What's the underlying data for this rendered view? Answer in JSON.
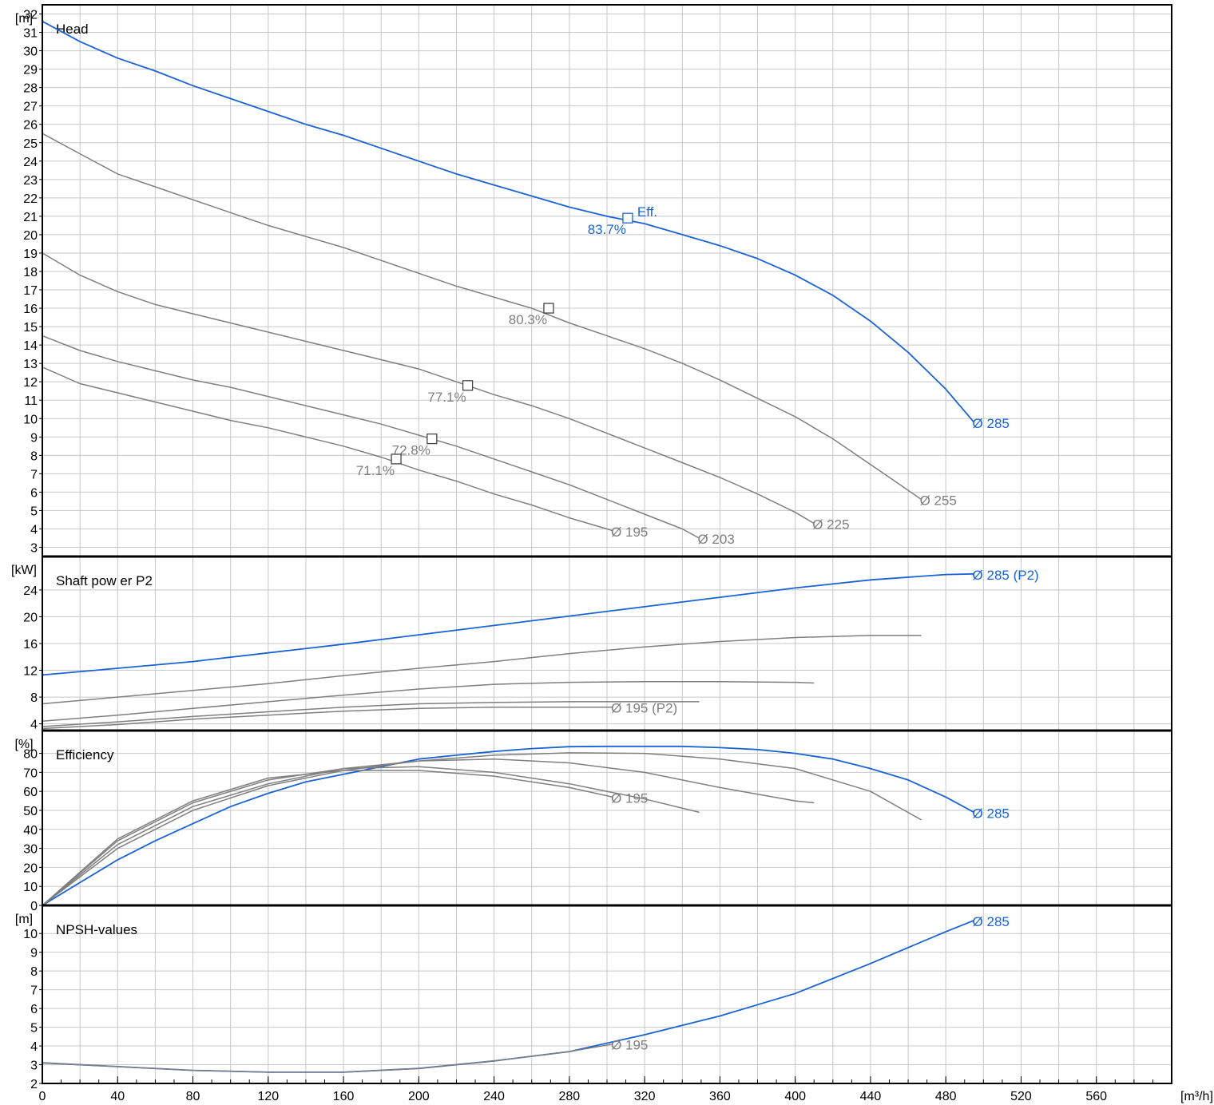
{
  "colors": {
    "main": "#1a63d6",
    "other": "#7f7f7f",
    "grid": "#c8c8c8",
    "frame": "#000000"
  },
  "x_axis": {
    "unit": "[m³/h]",
    "min": 0,
    "max": 600,
    "ticks": [
      0,
      40,
      80,
      120,
      160,
      200,
      240,
      280,
      320,
      360,
      400,
      440,
      480,
      520,
      560
    ]
  },
  "chart_data": [
    {
      "type": "line",
      "title": "Head",
      "ylabel": "[m]",
      "ylim": [
        2.5,
        32.5
      ],
      "yticks": [
        3,
        4,
        5,
        6,
        7,
        8,
        9,
        10,
        11,
        12,
        13,
        14,
        15,
        16,
        17,
        18,
        19,
        20,
        21,
        22,
        23,
        24,
        25,
        26,
        27,
        28,
        29,
        30,
        31,
        32
      ],
      "grid": true,
      "series": [
        {
          "name": "Ø 285",
          "main": true,
          "x": [
            0,
            20,
            40,
            60,
            80,
            100,
            120,
            140,
            160,
            180,
            200,
            220,
            240,
            260,
            280,
            300,
            320,
            340,
            360,
            380,
            400,
            420,
            440,
            460,
            480,
            495
          ],
          "y": [
            31.6,
            30.5,
            29.6,
            28.9,
            28.1,
            27.4,
            26.7,
            26.0,
            25.4,
            24.7,
            24.0,
            23.3,
            22.7,
            22.1,
            21.5,
            21.0,
            20.6,
            20.0,
            19.4,
            18.7,
            17.8,
            16.7,
            15.3,
            13.6,
            11.6,
            9.8
          ]
        },
        {
          "name": "Ø 255",
          "x": [
            0,
            20,
            40,
            60,
            80,
            100,
            120,
            140,
            160,
            180,
            200,
            220,
            240,
            260,
            280,
            300,
            320,
            340,
            360,
            380,
            400,
            420,
            440,
            460,
            467
          ],
          "y": [
            25.5,
            24.4,
            23.3,
            22.6,
            21.9,
            21.2,
            20.5,
            19.9,
            19.3,
            18.6,
            17.9,
            17.2,
            16.6,
            16.0,
            15.2,
            14.5,
            13.8,
            13.0,
            12.1,
            11.1,
            10.1,
            8.9,
            7.5,
            6.1,
            5.6
          ]
        },
        {
          "name": "Ø 225",
          "x": [
            0,
            20,
            40,
            60,
            80,
            100,
            120,
            140,
            160,
            180,
            200,
            220,
            240,
            260,
            280,
            300,
            320,
            340,
            360,
            380,
            400,
            410
          ],
          "y": [
            19.0,
            17.8,
            16.9,
            16.2,
            15.7,
            15.2,
            14.7,
            14.2,
            13.7,
            13.2,
            12.7,
            12.0,
            11.3,
            10.7,
            10.0,
            9.2,
            8.4,
            7.6,
            6.8,
            5.9,
            4.9,
            4.3
          ]
        },
        {
          "name": "Ø 203",
          "x": [
            0,
            20,
            40,
            60,
            80,
            100,
            120,
            140,
            160,
            180,
            200,
            220,
            240,
            260,
            280,
            300,
            320,
            340,
            349
          ],
          "y": [
            14.5,
            13.7,
            13.1,
            12.6,
            12.1,
            11.7,
            11.2,
            10.7,
            10.2,
            9.7,
            9.1,
            8.5,
            7.8,
            7.1,
            6.4,
            5.6,
            4.8,
            4.0,
            3.5
          ]
        },
        {
          "name": "Ø 195",
          "x": [
            0,
            20,
            40,
            60,
            80,
            100,
            120,
            140,
            160,
            180,
            200,
            220,
            240,
            260,
            280,
            300,
            303
          ],
          "y": [
            12.8,
            11.9,
            11.4,
            10.9,
            10.4,
            9.9,
            9.5,
            9.0,
            8.5,
            7.9,
            7.2,
            6.6,
            5.9,
            5.3,
            4.6,
            4.0,
            3.9
          ]
        }
      ],
      "annotations": [
        {
          "x": 311,
          "y": 20.9,
          "text": "Eff.",
          "main": true
        },
        {
          "x": 311,
          "y": 20.9,
          "text": "83.7%",
          "main": true
        },
        {
          "x": 269,
          "y": 16.0,
          "text": "80.3%"
        },
        {
          "x": 226,
          "y": 11.8,
          "text": "77.1%"
        },
        {
          "x": 207,
          "y": 8.9,
          "text": "72.8%"
        },
        {
          "x": 188,
          "y": 7.8,
          "text": "71.1%"
        }
      ]
    },
    {
      "type": "line",
      "title": "Shaft pow er P2",
      "ylabel": "[kW]",
      "ylim": [
        3,
        29
      ],
      "yticks": [
        4,
        8,
        12,
        16,
        20,
        24
      ],
      "grid": true,
      "series": [
        {
          "name": "Ø 285 (P2)",
          "main": true,
          "x": [
            0,
            40,
            80,
            120,
            160,
            200,
            240,
            280,
            320,
            360,
            400,
            440,
            480,
            495
          ],
          "y": [
            11.3,
            12.3,
            13.3,
            14.6,
            15.9,
            17.3,
            18.7,
            20.1,
            21.5,
            22.9,
            24.3,
            25.5,
            26.3,
            26.4
          ]
        },
        {
          "name": "",
          "x": [
            0,
            40,
            80,
            120,
            160,
            200,
            240,
            280,
            320,
            360,
            400,
            440,
            467
          ],
          "y": [
            7.0,
            8.0,
            9.0,
            10.0,
            11.2,
            12.3,
            13.3,
            14.5,
            15.5,
            16.3,
            16.9,
            17.2,
            17.2
          ]
        },
        {
          "name": "",
          "x": [
            0,
            40,
            80,
            120,
            160,
            200,
            240,
            280,
            320,
            360,
            400,
            410
          ],
          "y": [
            4.4,
            5.3,
            6.3,
            7.3,
            8.3,
            9.2,
            9.9,
            10.2,
            10.3,
            10.3,
            10.2,
            10.1
          ]
        },
        {
          "name": "",
          "x": [
            0,
            40,
            80,
            120,
            160,
            200,
            240,
            280,
            320,
            349
          ],
          "y": [
            3.6,
            4.3,
            5.1,
            5.8,
            6.5,
            7.0,
            7.2,
            7.3,
            7.3,
            7.3
          ]
        },
        {
          "name": "Ø 195 (P2)",
          "x": [
            0,
            40,
            80,
            120,
            160,
            200,
            240,
            280,
            303
          ],
          "y": [
            3.3,
            3.9,
            4.7,
            5.3,
            5.9,
            6.3,
            6.5,
            6.5,
            6.5
          ]
        }
      ]
    },
    {
      "type": "line",
      "title": "Efficiency",
      "ylabel": "[%]",
      "ylim": [
        0,
        92
      ],
      "yticks": [
        0,
        10,
        20,
        30,
        40,
        50,
        60,
        70,
        80
      ],
      "grid": true,
      "series": [
        {
          "name": "Ø 285",
          "main": true,
          "x": [
            0,
            20,
            40,
            60,
            80,
            100,
            120,
            140,
            160,
            180,
            200,
            220,
            240,
            260,
            280,
            300,
            320,
            340,
            360,
            380,
            400,
            420,
            440,
            460,
            480,
            495
          ],
          "y": [
            0,
            12,
            24,
            34,
            43,
            52,
            59,
            65,
            69,
            73,
            77,
            79,
            81,
            82.5,
            83.5,
            83.7,
            83.7,
            83.7,
            83,
            82,
            80,
            77,
            72,
            66,
            57,
            49
          ]
        },
        {
          "name": "",
          "x": [
            0,
            40,
            80,
            120,
            160,
            200,
            240,
            280,
            320,
            360,
            400,
            440,
            467
          ],
          "y": [
            0,
            30,
            50,
            63,
            71,
            76,
            79,
            80.3,
            80,
            77,
            72,
            60,
            45
          ]
        },
        {
          "name": "",
          "x": [
            0,
            40,
            80,
            120,
            160,
            200,
            240,
            280,
            320,
            360,
            400,
            410
          ],
          "y": [
            0,
            32,
            52,
            64,
            72,
            76,
            77,
            75,
            70,
            62,
            55,
            54
          ]
        },
        {
          "name": "",
          "x": [
            0,
            40,
            80,
            120,
            160,
            200,
            240,
            280,
            320,
            349
          ],
          "y": [
            0,
            34,
            54,
            66,
            72,
            73,
            70,
            64,
            56,
            49
          ]
        },
        {
          "name": "Ø 195",
          "x": [
            0,
            40,
            80,
            120,
            160,
            200,
            240,
            280,
            303
          ],
          "y": [
            0,
            35,
            55,
            67,
            71,
            71,
            68,
            62,
            57
          ]
        }
      ]
    },
    {
      "type": "line",
      "title": "NPSH-values",
      "ylabel": "[m]",
      "ylim": [
        2,
        11.5
      ],
      "yticks": [
        2,
        3,
        4,
        5,
        6,
        7,
        8,
        9,
        10
      ],
      "grid": true,
      "series": [
        {
          "name": "Ø 285",
          "main": true,
          "x": [
            0,
            40,
            80,
            120,
            160,
            200,
            240,
            280,
            320,
            360,
            400,
            440,
            480,
            495
          ],
          "y": [
            3.1,
            2.9,
            2.7,
            2.6,
            2.6,
            2.8,
            3.2,
            3.7,
            4.6,
            5.6,
            6.8,
            8.4,
            10.1,
            10.7
          ]
        },
        {
          "name": "Ø 195",
          "x": [
            0,
            40,
            80,
            120,
            160,
            200,
            240,
            280,
            303
          ],
          "y": [
            3.1,
            2.9,
            2.7,
            2.6,
            2.6,
            2.8,
            3.2,
            3.7,
            4.1
          ]
        }
      ]
    }
  ]
}
